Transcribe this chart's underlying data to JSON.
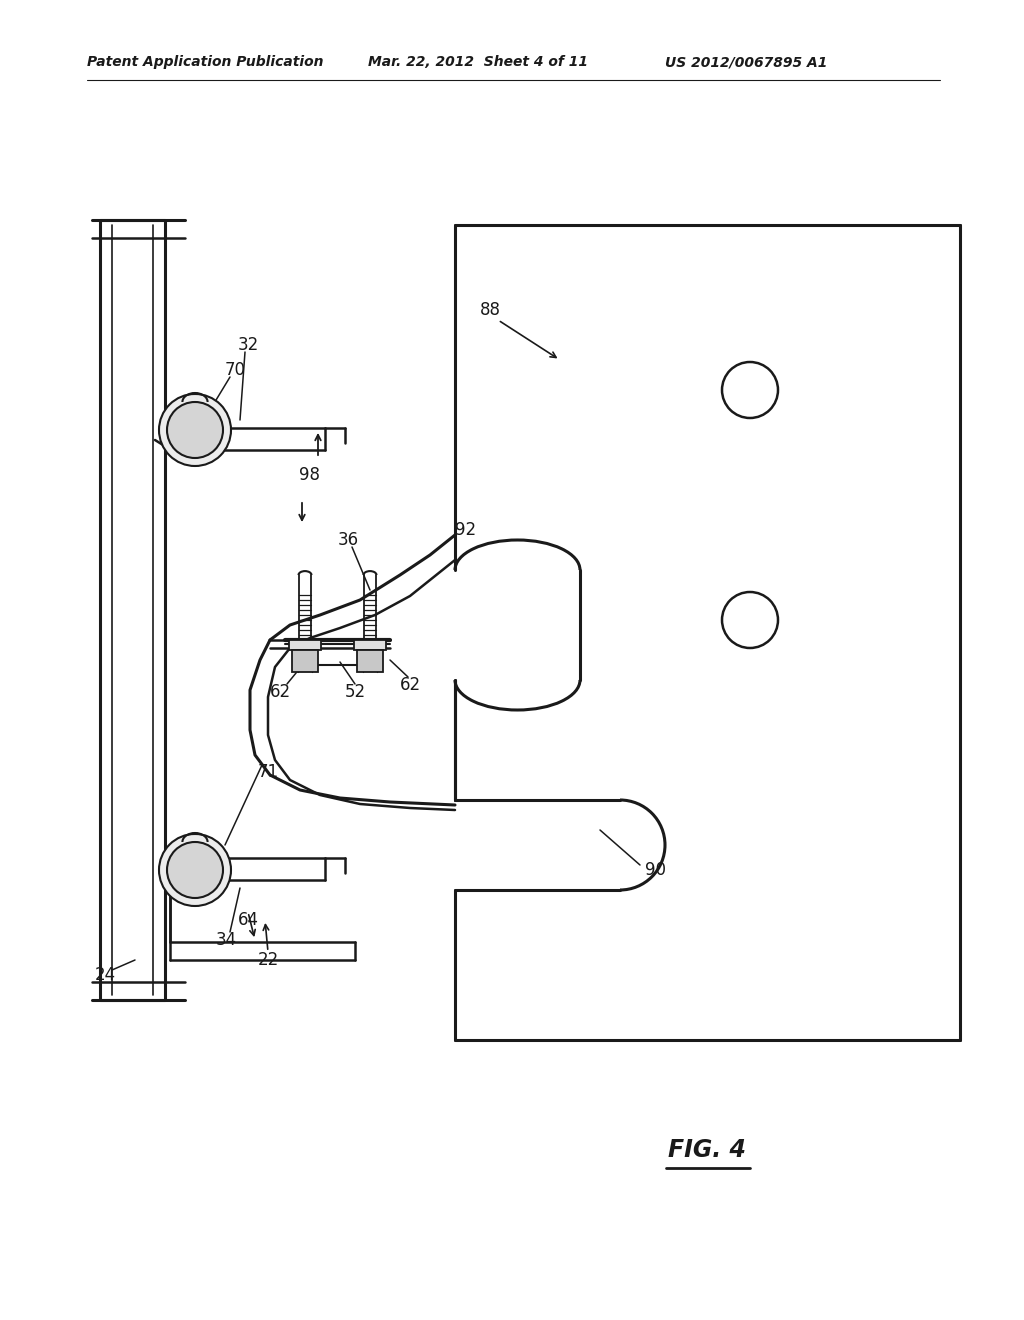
{
  "header_left": "Patent Application Publication",
  "header_mid": "Mar. 22, 2012  Sheet 4 of 11",
  "header_right": "US 2012/0067895 A1",
  "fig_label": "FIG. 4",
  "bg_color": "#ffffff",
  "line_color": "#1a1a1a",
  "lw_main": 1.8,
  "lw_thin": 1.2,
  "lw_thick": 2.2
}
